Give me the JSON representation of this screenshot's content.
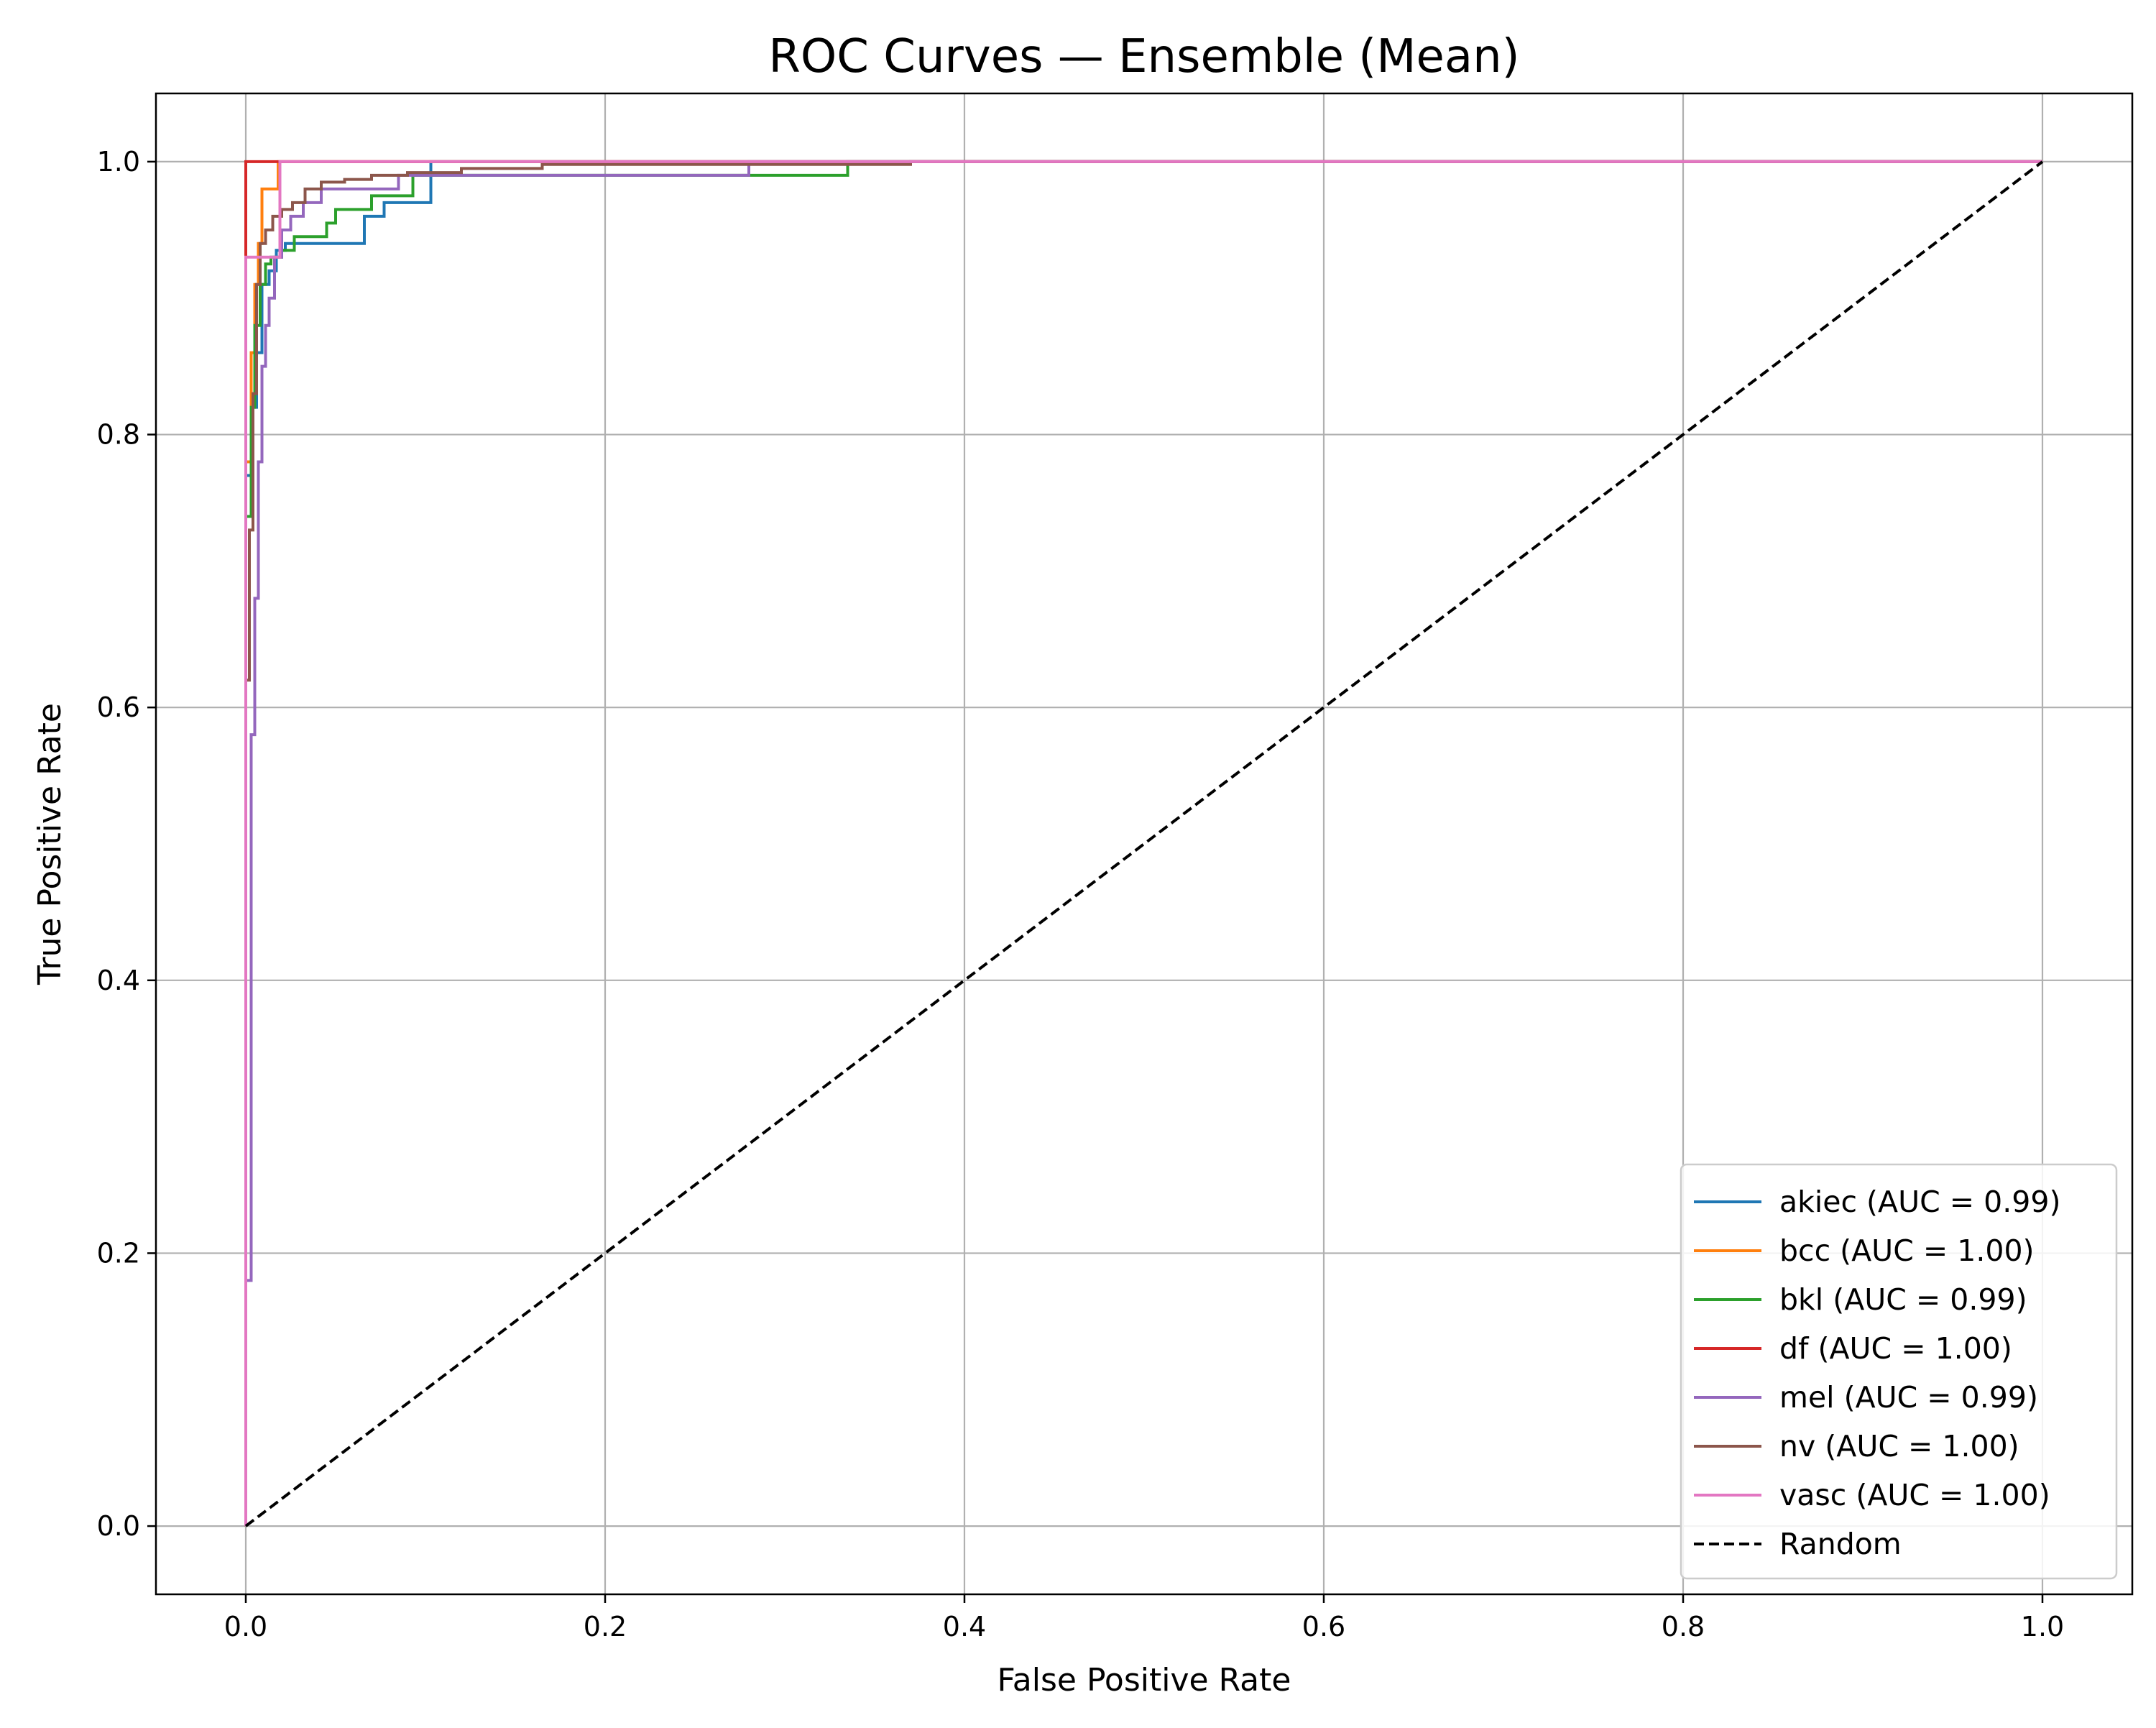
{
  "chart_data": {
    "type": "line",
    "title": "ROC Curves — Ensemble (Mean)",
    "xlabel": "False Positive Rate",
    "ylabel": "True Positive Rate",
    "xlim": [
      -0.05,
      1.05
    ],
    "ylim": [
      -0.05,
      1.05
    ],
    "x_ticks": [
      0.0,
      0.2,
      0.4,
      0.6,
      0.8,
      1.0
    ],
    "y_ticks": [
      0.0,
      0.2,
      0.4,
      0.6,
      0.8,
      1.0
    ],
    "x_tick_labels": [
      "0.0",
      "0.2",
      "0.4",
      "0.6",
      "0.8",
      "1.0"
    ],
    "y_tick_labels": [
      "0.0",
      "0.2",
      "0.4",
      "0.6",
      "0.8",
      "1.0"
    ],
    "grid": true,
    "legend_position": "lower-right",
    "series": [
      {
        "name": "akiec (AUC = 0.99)",
        "color": "#1f77b4",
        "dash": "solid",
        "x": [
          0.0,
          0.0,
          0.003,
          0.003,
          0.006,
          0.006,
          0.009,
          0.009,
          0.013,
          0.013,
          0.017,
          0.017,
          0.022,
          0.022,
          0.066,
          0.066,
          0.077,
          0.077,
          0.103,
          0.103,
          1.0
        ],
        "y": [
          0.0,
          0.77,
          0.77,
          0.82,
          0.82,
          0.86,
          0.86,
          0.91,
          0.91,
          0.92,
          0.92,
          0.935,
          0.935,
          0.94,
          0.94,
          0.96,
          0.96,
          0.97,
          0.97,
          1.0,
          1.0
        ]
      },
      {
        "name": "bcc (AUC = 1.00)",
        "color": "#ff7f0e",
        "dash": "solid",
        "x": [
          0.0,
          0.0,
          0.003,
          0.003,
          0.005,
          0.005,
          0.007,
          0.007,
          0.009,
          0.009,
          0.011,
          0.011,
          0.018,
          0.018,
          1.0
        ],
        "y": [
          0.0,
          0.78,
          0.78,
          0.86,
          0.86,
          0.91,
          0.91,
          0.94,
          0.94,
          0.98,
          0.98,
          0.98,
          0.98,
          1.0,
          1.0
        ]
      },
      {
        "name": "bkl (AUC = 0.99)",
        "color": "#2ca02c",
        "dash": "solid",
        "x": [
          0.0,
          0.0,
          0.003,
          0.003,
          0.005,
          0.005,
          0.008,
          0.008,
          0.011,
          0.011,
          0.014,
          0.014,
          0.02,
          0.02,
          0.027,
          0.027,
          0.045,
          0.045,
          0.05,
          0.05,
          0.07,
          0.07,
          0.093,
          0.093,
          0.335,
          0.335,
          1.0
        ],
        "y": [
          0.0,
          0.74,
          0.74,
          0.82,
          0.82,
          0.88,
          0.88,
          0.91,
          0.91,
          0.925,
          0.925,
          0.93,
          0.93,
          0.935,
          0.935,
          0.945,
          0.945,
          0.955,
          0.955,
          0.965,
          0.965,
          0.975,
          0.975,
          0.99,
          0.99,
          1.0,
          1.0
        ]
      },
      {
        "name": "df (AUC = 1.00)",
        "color": "#d62728",
        "dash": "solid",
        "x": [
          0.0,
          0.0,
          0.019,
          0.019,
          1.0
        ],
        "y": [
          0.0,
          1.0,
          1.0,
          1.0,
          1.0
        ]
      },
      {
        "name": "mel (AUC = 0.99)",
        "color": "#9467bd",
        "dash": "solid",
        "x": [
          0.0,
          0.0,
          0.003,
          0.003,
          0.005,
          0.005,
          0.007,
          0.007,
          0.009,
          0.009,
          0.011,
          0.011,
          0.013,
          0.013,
          0.016,
          0.016,
          0.02,
          0.02,
          0.025,
          0.025,
          0.032,
          0.032,
          0.042,
          0.042,
          0.085,
          0.085,
          0.28,
          0.28,
          1.0
        ],
        "y": [
          0.0,
          0.18,
          0.18,
          0.58,
          0.58,
          0.68,
          0.68,
          0.78,
          0.78,
          0.85,
          0.85,
          0.88,
          0.88,
          0.9,
          0.9,
          0.93,
          0.93,
          0.95,
          0.95,
          0.96,
          0.96,
          0.97,
          0.97,
          0.98,
          0.98,
          0.99,
          0.99,
          1.0,
          1.0
        ]
      },
      {
        "name": "nv (AUC = 1.00)",
        "color": "#8c564b",
        "dash": "solid",
        "x": [
          0.0,
          0.0,
          0.002,
          0.002,
          0.004,
          0.004,
          0.006,
          0.006,
          0.008,
          0.008,
          0.011,
          0.011,
          0.015,
          0.015,
          0.02,
          0.02,
          0.026,
          0.026,
          0.033,
          0.033,
          0.042,
          0.042,
          0.055,
          0.055,
          0.07,
          0.07,
          0.09,
          0.09,
          0.12,
          0.12,
          0.165,
          0.165,
          0.37,
          0.37,
          1.0
        ],
        "y": [
          0.0,
          0.62,
          0.62,
          0.73,
          0.73,
          0.83,
          0.83,
          0.91,
          0.91,
          0.94,
          0.94,
          0.95,
          0.95,
          0.96,
          0.96,
          0.965,
          0.965,
          0.97,
          0.97,
          0.98,
          0.98,
          0.985,
          0.985,
          0.987,
          0.987,
          0.99,
          0.99,
          0.992,
          0.992,
          0.995,
          0.995,
          0.998,
          0.998,
          1.0,
          1.0
        ]
      },
      {
        "name": "vasc (AUC = 1.00)",
        "color": "#e377c2",
        "dash": "solid",
        "x": [
          0.0,
          0.0,
          0.019,
          0.019,
          1.0
        ],
        "y": [
          0.0,
          0.93,
          0.93,
          1.0,
          1.0
        ]
      },
      {
        "name": "Random",
        "color": "#000000",
        "dash": "dashed",
        "x": [
          0.0,
          1.0
        ],
        "y": [
          0.0,
          1.0
        ]
      }
    ]
  }
}
